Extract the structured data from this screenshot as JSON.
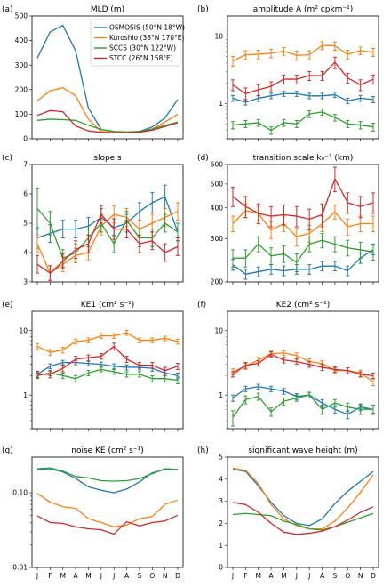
{
  "months": [
    "J",
    "F",
    "M",
    "A",
    "M",
    "J",
    "J",
    "A",
    "S",
    "O",
    "N",
    "D"
  ],
  "colors": {
    "OSMOSIS": "#1f77b4",
    "Kuroshio": "#ff7f0e",
    "SCCS": "#2ca02c",
    "STCC": "#d62728"
  },
  "chart_data": [
    {
      "id": "a",
      "panel_label": "(a)",
      "title": "MLD (m)",
      "type": "line",
      "scale": "linear",
      "ylim": [
        0,
        500
      ],
      "yticks": [
        0,
        100,
        200,
        300,
        400,
        500
      ],
      "ytick_labels": [
        "0",
        "100",
        "200",
        "300",
        "400",
        "500"
      ],
      "legend_position": "top-right",
      "legend": [
        "OSMOSIS (50°N 18°W)",
        "Kuroshio (38°N 170°E)",
        "SCCS (30°N 122°W)",
        "STCC (26°N 158°E)"
      ],
      "series": [
        {
          "key": "OSMOSIS",
          "values": [
            328,
            435,
            462,
            358,
            125,
            38,
            28,
            26,
            30,
            48,
            85,
            160
          ]
        },
        {
          "key": "Kuroshio",
          "values": [
            155,
            195,
            208,
            175,
            80,
            30,
            24,
            24,
            28,
            40,
            68,
            100
          ]
        },
        {
          "key": "SCCS",
          "values": [
            75,
            80,
            78,
            75,
            55,
            38,
            30,
            28,
            30,
            40,
            55,
            68
          ]
        },
        {
          "key": "STCC",
          "values": [
            95,
            115,
            110,
            52,
            32,
            26,
            24,
            24,
            27,
            35,
            50,
            65
          ]
        }
      ]
    },
    {
      "id": "b",
      "panel_label": "(b)",
      "title": "amplitude A (m² cpkm⁻¹)",
      "type": "line",
      "scale": "log",
      "ylim": [
        0.3,
        20
      ],
      "yticks": [
        1,
        10
      ],
      "ytick_labels": [
        "1",
        "10"
      ],
      "series": [
        {
          "key": "OSMOSIS",
          "values": [
            1.2,
            1.05,
            1.2,
            1.3,
            1.4,
            1.4,
            1.3,
            1.3,
            1.35,
            1.1,
            1.2,
            1.15
          ],
          "err": [
            0.12,
            0.1,
            0.12,
            0.12,
            0.12,
            0.12,
            0.12,
            0.12,
            0.12,
            0.1,
            0.12,
            0.12
          ]
        },
        {
          "key": "Kuroshio",
          "values": [
            4.3,
            5.3,
            5.4,
            5.6,
            6.0,
            5.2,
            5.3,
            7.3,
            7.2,
            5.4,
            6.1,
            5.8
          ],
          "err": [
            0.7,
            0.8,
            0.8,
            0.8,
            0.8,
            0.8,
            0.8,
            1.0,
            1.0,
            0.8,
            0.8,
            0.8
          ]
        },
        {
          "key": "SCCS",
          "values": [
            0.48,
            0.5,
            0.52,
            0.4,
            0.52,
            0.5,
            0.7,
            0.75,
            0.62,
            0.5,
            0.48,
            0.45
          ],
          "err": [
            0.06,
            0.06,
            0.06,
            0.05,
            0.06,
            0.06,
            0.08,
            0.08,
            0.07,
            0.06,
            0.06,
            0.06
          ]
        },
        {
          "key": "STCC",
          "values": [
            1.9,
            1.4,
            1.6,
            1.8,
            2.3,
            2.3,
            2.6,
            2.6,
            4.1,
            2.4,
            1.9,
            2.3
          ],
          "err": [
            0.35,
            0.3,
            0.3,
            0.3,
            0.35,
            0.35,
            0.4,
            0.4,
            0.8,
            0.4,
            0.35,
            0.35
          ]
        }
      ]
    },
    {
      "id": "c",
      "panel_label": "(c)",
      "title": "slope s",
      "type": "line",
      "scale": "linear",
      "ylim": [
        3,
        7
      ],
      "yticks": [
        3,
        4,
        5,
        6,
        7
      ],
      "ytick_labels": [
        "3",
        "4",
        "5",
        "6",
        "7"
      ],
      "series": [
        {
          "key": "OSMOSIS",
          "values": [
            4.5,
            4.65,
            4.8,
            4.8,
            4.9,
            5.2,
            4.85,
            5.0,
            5.4,
            5.7,
            5.9,
            4.7
          ],
          "err": [
            0.35,
            0.3,
            0.3,
            0.3,
            0.3,
            0.3,
            0.3,
            0.3,
            0.3,
            0.35,
            0.4,
            0.3
          ]
        },
        {
          "key": "Kuroshio",
          "values": [
            4.3,
            3.3,
            3.6,
            3.9,
            4.0,
            4.9,
            5.3,
            5.2,
            4.8,
            5.0,
            5.2,
            5.4
          ],
          "err": [
            0.3,
            0.25,
            0.25,
            0.25,
            0.25,
            0.3,
            0.3,
            0.3,
            0.3,
            0.3,
            0.3,
            0.3
          ]
        },
        {
          "key": "SCCS",
          "values": [
            5.5,
            5.0,
            3.8,
            4.0,
            4.5,
            5.0,
            4.3,
            5.1,
            4.5,
            4.5,
            5.0,
            4.7
          ],
          "err": [
            0.7,
            0.4,
            0.3,
            0.3,
            0.3,
            0.3,
            0.3,
            0.3,
            0.3,
            0.3,
            0.3,
            0.3
          ]
        },
        {
          "key": "STCC",
          "values": [
            3.6,
            3.3,
            3.7,
            4.1,
            4.3,
            5.3,
            4.8,
            4.8,
            4.3,
            4.4,
            4.0,
            4.2
          ],
          "err": [
            0.3,
            0.25,
            0.25,
            0.3,
            0.3,
            0.3,
            0.35,
            0.3,
            0.3,
            0.3,
            0.3,
            0.3
          ]
        }
      ]
    },
    {
      "id": "d",
      "panel_label": "(d)",
      "title": "transition scale k₀⁻¹ (km)",
      "type": "line",
      "scale": "log",
      "ylim": [
        200,
        600
      ],
      "yticks": [
        200,
        300,
        400,
        500,
        600
      ],
      "ytick_labels": [
        "200",
        "300",
        "400",
        "500",
        "600"
      ],
      "series": [
        {
          "key": "OSMOSIS",
          "values": [
            235,
            215,
            220,
            225,
            222,
            225,
            225,
            232,
            232,
            222,
            250,
            270
          ],
          "err": [
            12,
            10,
            10,
            10,
            10,
            10,
            10,
            10,
            10,
            10,
            12,
            12
          ]
        },
        {
          "key": "Kuroshio",
          "values": [
            345,
            390,
            380,
            325,
            345,
            305,
            315,
            345,
            385,
            335,
            345,
            345
          ],
          "err": [
            25,
            25,
            25,
            25,
            25,
            25,
            25,
            25,
            25,
            25,
            25,
            25
          ]
        },
        {
          "key": "SCCS",
          "values": [
            250,
            250,
            285,
            255,
            260,
            240,
            285,
            295,
            285,
            275,
            270,
            265
          ],
          "err": [
            20,
            20,
            20,
            20,
            20,
            20,
            20,
            20,
            20,
            20,
            20,
            20
          ]
        },
        {
          "key": "STCC",
          "values": [
            445,
            405,
            380,
            370,
            375,
            370,
            360,
            375,
            525,
            420,
            405,
            420
          ],
          "err": [
            40,
            40,
            35,
            35,
            35,
            35,
            35,
            40,
            60,
            40,
            40,
            40
          ]
        }
      ]
    },
    {
      "id": "e",
      "panel_label": "(e)",
      "title": "KE1 (cm² s⁻¹)",
      "type": "line",
      "scale": "log",
      "ylim": [
        0.3,
        20
      ],
      "yticks": [
        1,
        10
      ],
      "ytick_labels": [
        "1",
        "10"
      ],
      "series": [
        {
          "key": "OSMOSIS",
          "values": [
            2.1,
            2.8,
            3.2,
            3.2,
            3.1,
            3.0,
            2.8,
            2.7,
            2.7,
            2.6,
            2.2,
            2.0
          ],
          "err": [
            0.2,
            0.25,
            0.25,
            0.25,
            0.25,
            0.25,
            0.25,
            0.25,
            0.25,
            0.25,
            0.2,
            0.2
          ]
        },
        {
          "key": "Kuroshio",
          "values": [
            5.7,
            4.6,
            5.0,
            6.8,
            7.1,
            8.3,
            8.3,
            9.3,
            7.1,
            7.1,
            7.6,
            6.8
          ],
          "err": [
            0.6,
            0.5,
            0.5,
            0.6,
            0.6,
            0.7,
            0.7,
            0.8,
            0.6,
            0.6,
            0.6,
            0.6
          ]
        },
        {
          "key": "SCCS",
          "values": [
            2.0,
            2.2,
            2.0,
            1.8,
            2.2,
            2.5,
            2.3,
            2.1,
            2.1,
            1.8,
            1.8,
            1.7
          ],
          "err": [
            0.2,
            0.2,
            0.2,
            0.2,
            0.2,
            0.2,
            0.2,
            0.2,
            0.2,
            0.2,
            0.2,
            0.2
          ]
        },
        {
          "key": "STCC",
          "values": [
            2.1,
            2.1,
            2.6,
            3.6,
            3.8,
            4.0,
            5.7,
            3.6,
            2.9,
            2.9,
            2.4,
            2.8
          ],
          "err": [
            0.25,
            0.25,
            0.3,
            0.4,
            0.4,
            0.4,
            0.7,
            0.4,
            0.3,
            0.3,
            0.3,
            0.3
          ]
        }
      ]
    },
    {
      "id": "f",
      "panel_label": "(f)",
      "title": "KE2 (cm² s⁻¹)",
      "type": "line",
      "scale": "log",
      "ylim": [
        0.3,
        20
      ],
      "yticks": [
        1,
        10
      ],
      "ytick_labels": [
        "1",
        "10"
      ],
      "series": [
        {
          "key": "OSMOSIS",
          "values": [
            0.9,
            1.25,
            1.35,
            1.25,
            1.15,
            0.95,
            1.0,
            0.75,
            0.6,
            0.5,
            0.65,
            0.6
          ],
          "err": [
            0.1,
            0.12,
            0.12,
            0.12,
            0.12,
            0.1,
            0.1,
            0.1,
            0.08,
            0.07,
            0.08,
            0.08
          ]
        },
        {
          "key": "Kuroshio",
          "values": [
            2.3,
            2.8,
            3.5,
            4.4,
            4.5,
            4.1,
            3.3,
            3.1,
            2.4,
            2.4,
            2.2,
            1.6
          ],
          "err": [
            0.25,
            0.3,
            0.35,
            0.4,
            0.4,
            0.4,
            0.35,
            0.3,
            0.25,
            0.25,
            0.25,
            0.2
          ]
        },
        {
          "key": "SCCS",
          "values": [
            0.45,
            0.85,
            0.95,
            0.55,
            0.8,
            0.9,
            1.0,
            0.6,
            0.75,
            0.65,
            0.6,
            0.6
          ],
          "err": [
            0.12,
            0.12,
            0.12,
            0.08,
            0.1,
            0.1,
            0.1,
            0.1,
            0.1,
            0.1,
            0.1,
            0.1
          ]
        },
        {
          "key": "STCC",
          "values": [
            2.1,
            2.9,
            3.1,
            4.3,
            3.5,
            3.3,
            3.0,
            2.7,
            2.5,
            2.4,
            2.1,
            2.0
          ],
          "err": [
            0.2,
            0.3,
            0.3,
            0.4,
            0.35,
            0.3,
            0.3,
            0.3,
            0.25,
            0.25,
            0.2,
            0.2
          ]
        }
      ]
    },
    {
      "id": "g",
      "panel_label": "(g)",
      "title": "noise KE (cm² s⁻¹)",
      "type": "line",
      "scale": "log",
      "ylim": [
        0.01,
        0.3
      ],
      "yticks": [
        0.01,
        0.1
      ],
      "ytick_labels": [
        "0.01",
        "0.10"
      ],
      "series": [
        {
          "key": "OSMOSIS",
          "values": [
            0.205,
            0.21,
            0.19,
            0.155,
            0.12,
            0.108,
            0.1,
            0.112,
            0.14,
            0.185,
            0.205,
            0.205
          ]
        },
        {
          "key": "Kuroshio",
          "values": [
            0.098,
            0.075,
            0.065,
            0.062,
            0.045,
            0.04,
            0.035,
            0.037,
            0.045,
            0.048,
            0.07,
            0.08
          ]
        },
        {
          "key": "SCCS",
          "values": [
            0.21,
            0.215,
            0.195,
            0.165,
            0.158,
            0.145,
            0.143,
            0.145,
            0.155,
            0.18,
            0.21,
            0.205
          ]
        },
        {
          "key": "STCC",
          "values": [
            0.049,
            0.04,
            0.039,
            0.035,
            0.033,
            0.032,
            0.028,
            0.041,
            0.036,
            0.04,
            0.042,
            0.05
          ]
        }
      ]
    },
    {
      "id": "h",
      "panel_label": "(h)",
      "title": "significant wave height (m)",
      "type": "line",
      "scale": "linear",
      "ylim": [
        0,
        5
      ],
      "yticks": [
        0,
        1,
        2,
        3,
        4,
        5
      ],
      "ytick_labels": [
        "0",
        "1",
        "2",
        "3",
        "4",
        "5"
      ],
      "series": [
        {
          "key": "OSMOSIS",
          "values": [
            4.45,
            4.35,
            3.7,
            2.95,
            2.35,
            2.0,
            1.9,
            2.2,
            2.9,
            3.45,
            3.9,
            4.35
          ]
        },
        {
          "key": "Kuroshio",
          "values": [
            4.5,
            4.4,
            3.8,
            2.85,
            2.2,
            1.9,
            1.75,
            1.75,
            2.1,
            2.7,
            3.4,
            4.2
          ]
        },
        {
          "key": "SCCS",
          "values": [
            2.4,
            2.45,
            2.4,
            2.35,
            2.1,
            1.95,
            1.75,
            1.7,
            1.85,
            2.05,
            2.25,
            2.45
          ]
        },
        {
          "key": "STCC",
          "values": [
            2.95,
            2.85,
            2.5,
            2.0,
            1.6,
            1.5,
            1.55,
            1.65,
            1.85,
            2.15,
            2.5,
            2.75
          ]
        }
      ]
    }
  ]
}
